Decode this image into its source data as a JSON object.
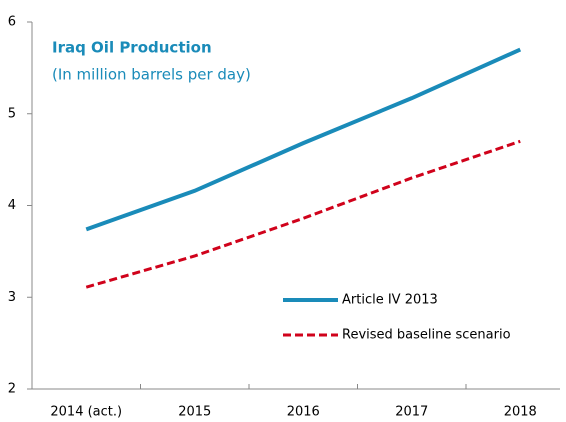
{
  "chart_data": {
    "type": "line",
    "title": "Iraq Oil Production",
    "subtitle": "(In million barrels per day)",
    "categories": [
      "2014 (act.)",
      "2015",
      "2016",
      "2017",
      "2018"
    ],
    "series": [
      {
        "name": "Article IV 2013",
        "color": "#1a8bb9",
        "dash": false,
        "values": [
          3.74,
          4.16,
          4.68,
          5.17,
          5.7
        ]
      },
      {
        "name": "Revised baseline scenario",
        "color": "#d0021b",
        "dash": true,
        "values": [
          3.11,
          3.45,
          3.86,
          4.3,
          4.7
        ]
      }
    ],
    "ylim": [
      2,
      6
    ],
    "yticks": [
      2,
      3,
      4,
      5,
      6
    ],
    "grid": false,
    "legend": "lower right"
  }
}
